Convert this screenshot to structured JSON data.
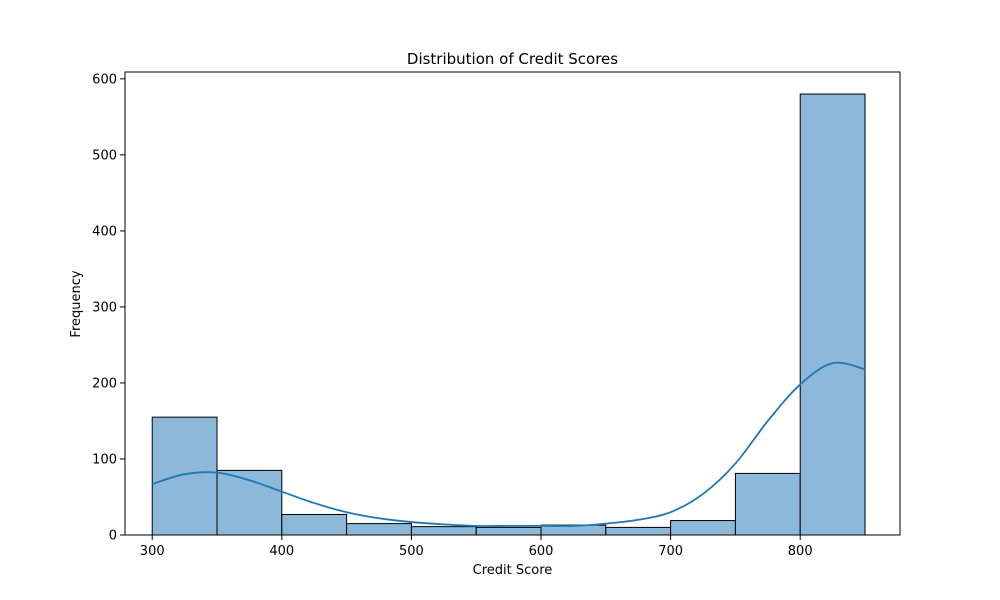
{
  "chart_data": {
    "type": "bar",
    "title": "Distribution of Credit Scores",
    "xlabel": "Credit Score",
    "ylabel": "Frequency",
    "xlim": [
      279,
      877
    ],
    "ylim": [
      0,
      609
    ],
    "x_ticks": [
      300,
      400,
      500,
      600,
      700,
      800
    ],
    "y_ticks": [
      0,
      100,
      200,
      300,
      400,
      500,
      600
    ],
    "bin_edges": [
      300,
      350,
      400,
      450,
      500,
      550,
      600,
      650,
      700,
      750,
      800,
      850
    ],
    "values": [
      155,
      85,
      27,
      15,
      11,
      10,
      13,
      10,
      19,
      81,
      580
    ],
    "kde": {
      "x": [
        300,
        325,
        350,
        375,
        400,
        425,
        450,
        475,
        500,
        525,
        550,
        575,
        600,
        625,
        650,
        675,
        700,
        725,
        750,
        775,
        800,
        825,
        850
      ],
      "y": [
        67,
        80,
        82,
        72,
        57,
        42,
        30,
        22,
        17,
        14,
        12,
        12,
        12,
        12,
        15,
        20,
        30,
        54,
        94,
        150,
        198,
        226,
        218
      ]
    },
    "grid": false,
    "colors": {
      "bar_fill": "#8cb8da",
      "bar_edge": "#000000",
      "kde_line": "#1f77b4"
    }
  }
}
